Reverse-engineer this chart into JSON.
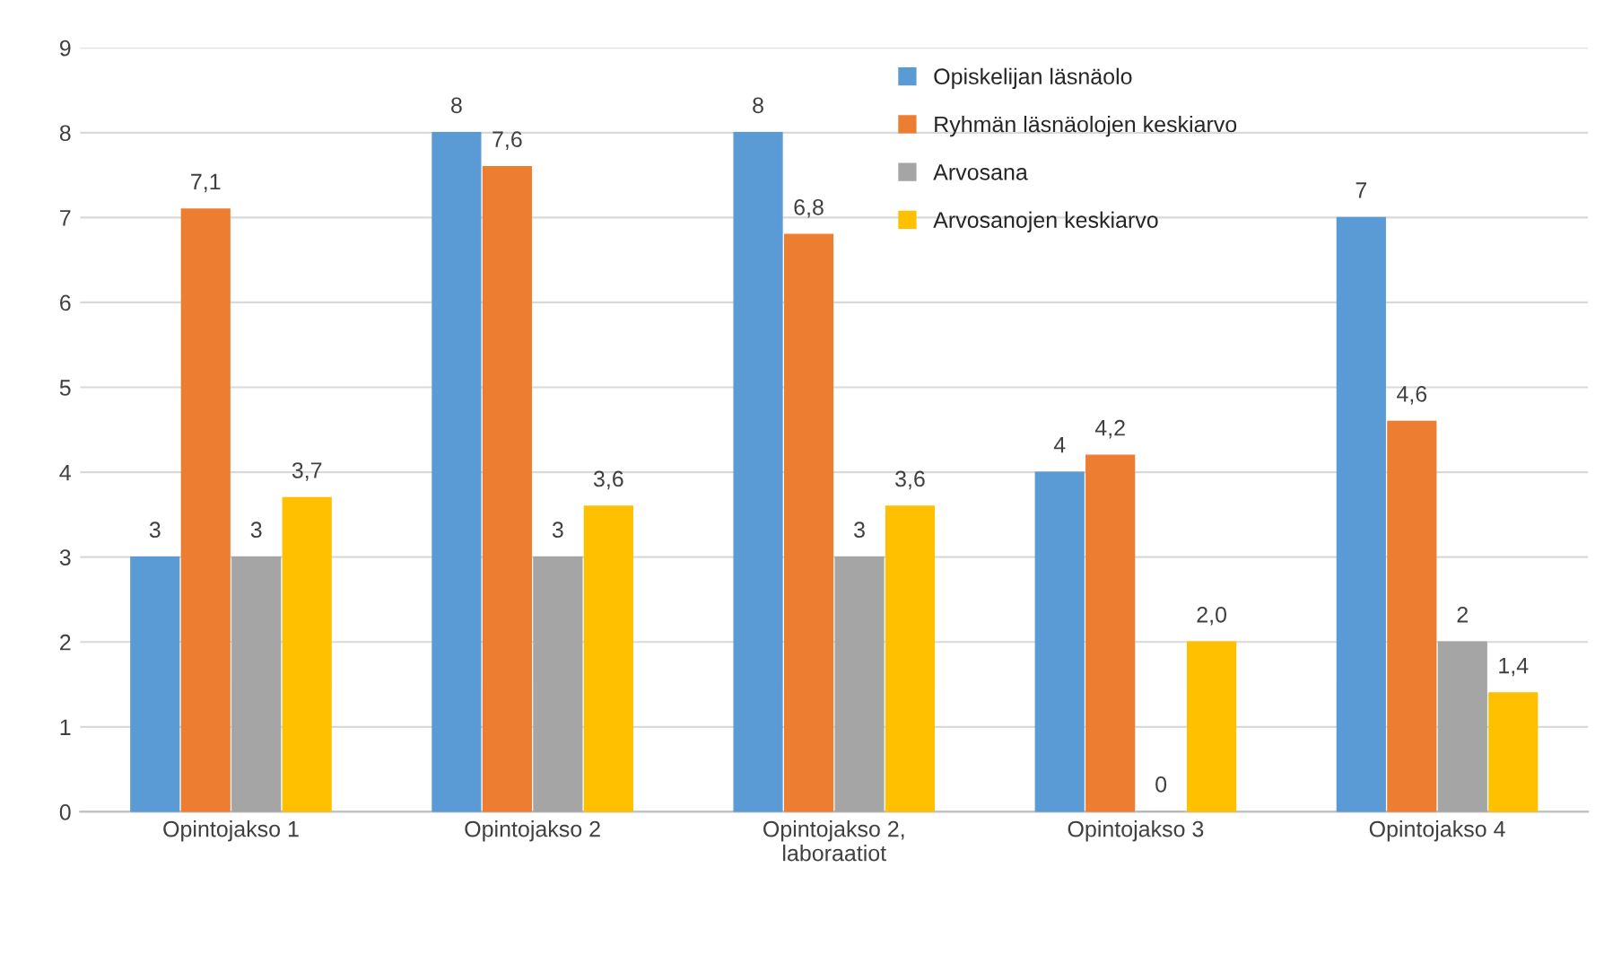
{
  "chart_data": {
    "type": "bar",
    "categories": [
      "Opintojakso 1",
      "Opintojakso 2",
      "Opintojakso 2,\nlaboraatiot",
      "Opintojakso 3",
      "Opintojakso 4"
    ],
    "series": [
      {
        "name": "Opiskelijan läsnäolo",
        "color": "#5b9bd5",
        "values": [
          3,
          8,
          8,
          4,
          7
        ],
        "value_labels": [
          "3",
          "8",
          "8",
          "4",
          "7"
        ]
      },
      {
        "name": "Ryhmän läsnäolojen keskiarvo",
        "color": "#ed7d31",
        "values": [
          7.1,
          7.6,
          6.8,
          4.2,
          4.6
        ],
        "value_labels": [
          "7,1",
          "7,6",
          "6,8",
          "4,2",
          "4,6"
        ]
      },
      {
        "name": "Arvosana",
        "color": "#a5a5a5",
        "values": [
          3,
          3,
          3,
          0,
          2
        ],
        "value_labels": [
          "3",
          "3",
          "3",
          "0",
          "2"
        ]
      },
      {
        "name": "Arvosanojen keskiarvo",
        "color": "#ffc000",
        "values": [
          3.7,
          3.6,
          3.6,
          2.0,
          1.4
        ],
        "value_labels": [
          "3,7",
          "3,6",
          "3,6",
          "2,0",
          "1,4"
        ]
      }
    ],
    "ylim": [
      0,
      9
    ],
    "yticks": [
      0,
      1,
      2,
      3,
      4,
      5,
      6,
      7,
      8,
      9
    ],
    "grid": "y",
    "legend": "top"
  }
}
